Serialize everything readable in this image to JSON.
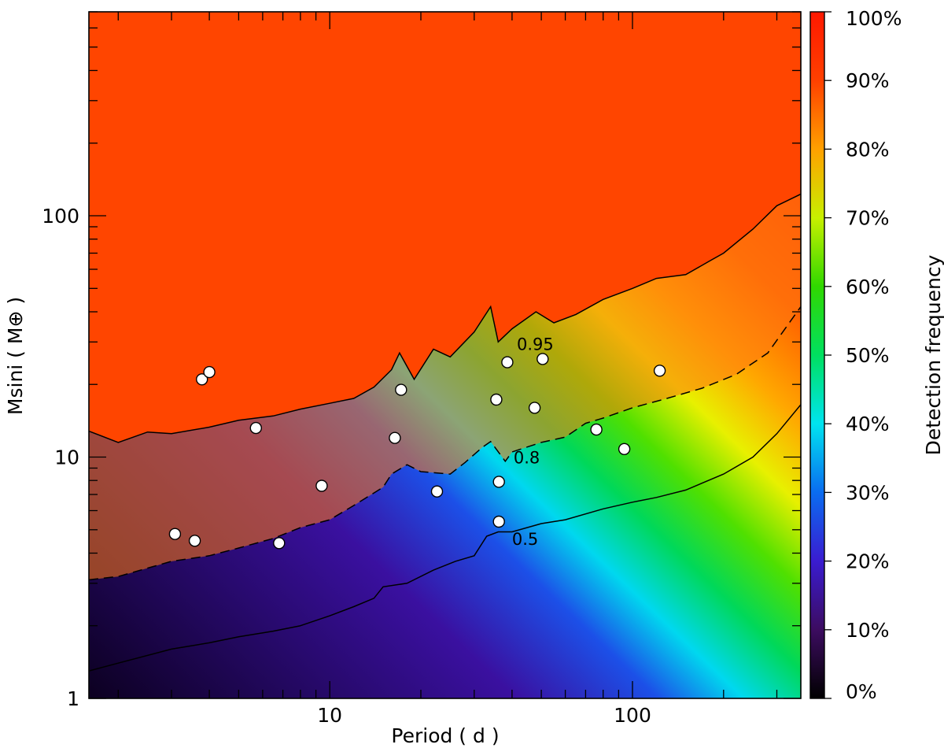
{
  "chart_data": {
    "type": "heatmap",
    "title": "",
    "xlabel": "Period ( d )",
    "ylabel": "Msini ( M⊕ )",
    "xscale": "log",
    "yscale": "log",
    "xlim": [
      1.6,
      360
    ],
    "ylim": [
      1,
      700
    ],
    "x_tick_labels": [
      {
        "value": 10,
        "label": "10"
      },
      {
        "value": 100,
        "label": "100"
      }
    ],
    "y_tick_labels": [
      {
        "value": 1,
        "label": "1"
      },
      {
        "value": 10,
        "label": "10"
      },
      {
        "value": 100,
        "label": "100"
      }
    ],
    "colorbar": {
      "label": "Detection frequency",
      "range": [
        0,
        100
      ],
      "tick_labels": [
        "0%",
        "10%",
        "20%",
        "30%",
        "40%",
        "50%",
        "60%",
        "70%",
        "80%",
        "90%",
        "100%"
      ],
      "colors": [
        "#000000",
        "#3c0c60",
        "#3a1cd0",
        "#0a6cf0",
        "#00e4f0",
        "#00e060",
        "#30d800",
        "#c8f000",
        "#ffa000",
        "#ff4000",
        "#ff1800"
      ]
    },
    "contours": [
      {
        "level": 0.95,
        "label": "0.95",
        "style": "solid",
        "points": [
          [
            1.6,
            12.8
          ],
          [
            2.0,
            11.5
          ],
          [
            2.5,
            12.7
          ],
          [
            3.0,
            12.5
          ],
          [
            4.0,
            13.3
          ],
          [
            5.0,
            14.2
          ],
          [
            6.5,
            14.8
          ],
          [
            8.0,
            15.8
          ],
          [
            10.0,
            16.7
          ],
          [
            12.0,
            17.5
          ],
          [
            14.0,
            19.5
          ],
          [
            16.0,
            23
          ],
          [
            17.0,
            27
          ],
          [
            19.0,
            21
          ],
          [
            22.0,
            28
          ],
          [
            25.0,
            26
          ],
          [
            30.0,
            33
          ],
          [
            34.0,
            42
          ],
          [
            36.0,
            30
          ],
          [
            40.0,
            34
          ],
          [
            48.0,
            40
          ],
          [
            55.0,
            36
          ],
          [
            65.0,
            39
          ],
          [
            80.0,
            45
          ],
          [
            100.0,
            50
          ],
          [
            120.0,
            55
          ],
          [
            150.0,
            57
          ],
          [
            180.0,
            65
          ],
          [
            200.0,
            70
          ],
          [
            250.0,
            88
          ],
          [
            300.0,
            110
          ],
          [
            360.0,
            123
          ]
        ]
      },
      {
        "level": 0.8,
        "label": "0.8",
        "style": "dashed",
        "points": [
          [
            1.6,
            3.1
          ],
          [
            2.0,
            3.2
          ],
          [
            3.0,
            3.7
          ],
          [
            4.0,
            3.9
          ],
          [
            5.0,
            4.2
          ],
          [
            6.5,
            4.6
          ],
          [
            8.0,
            5.1
          ],
          [
            10.0,
            5.5
          ],
          [
            12.0,
            6.3
          ],
          [
            15.0,
            7.5
          ],
          [
            16.0,
            8.5
          ],
          [
            18.0,
            9.3
          ],
          [
            20.0,
            8.7
          ],
          [
            25.0,
            8.5
          ],
          [
            28.0,
            9.5
          ],
          [
            32.0,
            11.0
          ],
          [
            34.0,
            11.6
          ],
          [
            38.0,
            9.6
          ],
          [
            40.0,
            10.5
          ],
          [
            50.0,
            11.5
          ],
          [
            60.0,
            12.1
          ],
          [
            70.0,
            13.8
          ],
          [
            80.0,
            14.5
          ],
          [
            100.0,
            16.0
          ],
          [
            130.0,
            17.5
          ],
          [
            170.0,
            19.3
          ],
          [
            220.0,
            22.0
          ],
          [
            280.0,
            27.0
          ],
          [
            360.0,
            42.0
          ]
        ]
      },
      {
        "level": 0.5,
        "label": "0.5",
        "style": "solid",
        "points": [
          [
            1.6,
            1.3
          ],
          [
            2.0,
            1.4
          ],
          [
            3.0,
            1.6
          ],
          [
            4.0,
            1.7
          ],
          [
            5.0,
            1.8
          ],
          [
            6.5,
            1.9
          ],
          [
            8.0,
            2.0
          ],
          [
            10.0,
            2.2
          ],
          [
            12.0,
            2.4
          ],
          [
            14.0,
            2.6
          ],
          [
            15.0,
            2.9
          ],
          [
            18.0,
            3.0
          ],
          [
            22.0,
            3.4
          ],
          [
            26.0,
            3.7
          ],
          [
            30.0,
            3.9
          ],
          [
            33.0,
            4.7
          ],
          [
            36.0,
            4.9
          ],
          [
            40.0,
            4.9
          ],
          [
            50.0,
            5.3
          ],
          [
            60.0,
            5.5
          ],
          [
            80.0,
            6.1
          ],
          [
            100.0,
            6.5
          ],
          [
            120.0,
            6.8
          ],
          [
            150.0,
            7.3
          ],
          [
            200.0,
            8.5
          ],
          [
            250.0,
            10.0
          ],
          [
            300.0,
            12.5
          ],
          [
            360.0,
            16.5
          ]
        ]
      }
    ],
    "points": [
      {
        "x": 3.08,
        "y": 4.8
      },
      {
        "x": 3.58,
        "y": 4.5
      },
      {
        "x": 3.78,
        "y": 21.0
      },
      {
        "x": 4.0,
        "y": 22.5
      },
      {
        "x": 5.7,
        "y": 13.2
      },
      {
        "x": 6.8,
        "y": 4.4
      },
      {
        "x": 9.4,
        "y": 7.6
      },
      {
        "x": 16.4,
        "y": 12.0
      },
      {
        "x": 17.2,
        "y": 19.0
      },
      {
        "x": 22.6,
        "y": 7.2
      },
      {
        "x": 35.5,
        "y": 17.3
      },
      {
        "x": 36.2,
        "y": 7.9
      },
      {
        "x": 36.2,
        "y": 5.4
      },
      {
        "x": 38.6,
        "y": 24.7
      },
      {
        "x": 47.5,
        "y": 16.0
      },
      {
        "x": 50.5,
        "y": 25.5
      },
      {
        "x": 76.0,
        "y": 13.0
      },
      {
        "x": 94.0,
        "y": 10.8
      },
      {
        "x": 123.0,
        "y": 22.8
      }
    ]
  }
}
